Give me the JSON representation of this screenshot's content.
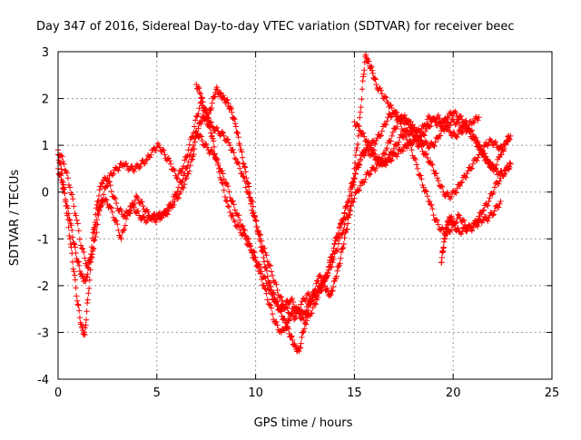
{
  "chart_data": {
    "type": "scatter",
    "title": "Day 347 of 2016, Sidereal Day-to-day VTEC variation (SDTVAR) for receiver beec",
    "xlabel": "GPS time / hours",
    "ylabel": "SDTVAR / TECUs",
    "xlim": [
      0,
      25
    ],
    "ylim": [
      -4,
      3
    ],
    "xticks": [
      0,
      5,
      10,
      15,
      20,
      25
    ],
    "yticks": [
      -4,
      -3,
      -2,
      -1,
      0,
      1,
      2,
      3
    ],
    "grid": true,
    "marker": "+",
    "color": "#ff0000",
    "series": [
      {
        "x": [
          0.0,
          0.2,
          0.4,
          0.6,
          0.8,
          1.0,
          1.2,
          1.35,
          1.5,
          1.7,
          1.9,
          2.1,
          2.3,
          2.6,
          2.9,
          3.2,
          3.5,
          3.8,
          4.1,
          4.4,
          4.7,
          5.0,
          5.3,
          5.6,
          5.9,
          6.2,
          6.5,
          6.8,
          7.0,
          7.2,
          7.4,
          7.6,
          7.8,
          8.0,
          8.3,
          8.6,
          8.9,
          9.2,
          9.5,
          9.8,
          10.1,
          10.4,
          10.7,
          11.0,
          11.3,
          11.6,
          11.9,
          12.2,
          12.5,
          12.8,
          13.1,
          13.4,
          13.7,
          14.0,
          14.3,
          14.6,
          14.9,
          15.2,
          15.5,
          15.8,
          16.1,
          16.4,
          16.7,
          17.0,
          17.3,
          17.6,
          17.9,
          18.2,
          18.5,
          18.8,
          19.1,
          19.4,
          19.7,
          20.0,
          20.3,
          20.6,
          20.9,
          21.2,
          21.5,
          21.8,
          22.1,
          22.4,
          22.7,
          22.9
        ],
        "y": [
          0.8,
          0.4,
          -0.3,
          -1.0,
          -1.7,
          -2.4,
          -2.9,
          -3.05,
          -2.3,
          -1.4,
          -0.7,
          -0.3,
          -0.15,
          -0.3,
          -0.6,
          -1.0,
          -0.5,
          -0.3,
          -0.5,
          -0.6,
          -0.55,
          -0.5,
          -0.5,
          -0.4,
          -0.2,
          0.0,
          0.3,
          0.7,
          1.2,
          1.5,
          1.6,
          1.45,
          1.2,
          0.7,
          0.2,
          -0.3,
          -0.6,
          -0.8,
          -1.0,
          -1.3,
          -1.6,
          -2.0,
          -2.4,
          -2.8,
          -3.0,
          -2.8,
          -2.5,
          -2.6,
          -2.8,
          -2.6,
          -2.3,
          -2.0,
          -1.6,
          -1.1,
          -0.7,
          -0.3,
          0.2,
          0.6,
          0.9,
          1.0,
          1.1,
          1.3,
          1.6,
          1.7,
          1.5,
          1.2,
          0.9,
          0.5,
          0.1,
          -0.2,
          -0.6,
          -0.8,
          -0.9,
          -0.7,
          -0.5,
          -0.7,
          -0.8,
          -0.6,
          -0.4,
          -0.2,
          0.1,
          0.3,
          0.5,
          0.6
        ]
      },
      {
        "x": [
          0.0,
          0.2,
          0.4,
          0.6,
          0.8,
          1.0,
          1.2,
          1.4,
          1.6,
          1.8,
          2.0,
          2.2,
          2.5,
          2.8,
          3.1,
          3.4,
          3.7,
          4.0,
          4.3,
          4.6,
          4.9,
          5.2,
          5.5,
          5.8,
          6.1,
          6.4,
          6.7,
          7.0,
          7.3,
          7.6,
          7.9,
          8.2,
          8.5,
          8.8,
          9.1,
          9.4,
          9.7,
          10.0,
          10.3,
          10.6,
          10.9,
          11.2,
          11.5,
          11.8,
          12.1,
          12.4,
          12.7,
          13.0,
          13.3,
          13.6,
          13.9,
          14.2,
          14.5,
          14.8,
          15.1,
          15.4,
          15.7,
          16.0,
          16.3,
          16.6,
          16.9,
          17.2,
          17.5,
          17.8,
          18.1,
          18.4,
          18.7,
          19.0,
          19.3,
          19.6,
          19.9,
          20.2,
          20.5,
          20.8,
          21.1,
          21.4,
          21.7,
          22.0,
          22.3,
          22.6,
          22.9
        ],
        "y": [
          0.5,
          0.2,
          -0.2,
          -0.6,
          -1.1,
          -1.5,
          -1.8,
          -1.9,
          -1.5,
          -0.8,
          -0.2,
          0.2,
          0.3,
          -0.1,
          -0.4,
          -0.5,
          -0.3,
          -0.1,
          -0.3,
          -0.5,
          -0.6,
          -0.55,
          -0.4,
          -0.2,
          0.1,
          0.4,
          0.8,
          1.3,
          1.1,
          0.9,
          0.8,
          0.5,
          0.2,
          -0.2,
          -0.5,
          -0.8,
          -1.1,
          -1.4,
          -1.7,
          -2.0,
          -2.3,
          -2.5,
          -2.4,
          -2.3,
          -2.5,
          -2.6,
          -2.4,
          -2.2,
          -2.0,
          -1.8,
          -1.5,
          -1.1,
          -0.7,
          -0.3,
          0.0,
          0.2,
          0.4,
          0.5,
          0.6,
          0.9,
          1.2,
          1.5,
          1.6,
          1.5,
          1.3,
          1.1,
          1.0,
          1.0,
          1.2,
          1.4,
          1.5,
          1.5,
          1.4,
          1.3,
          1.1,
          0.9,
          0.7,
          0.5,
          0.4,
          0.4,
          0.6
        ]
      },
      {
        "x": [
          0.0,
          0.3,
          0.6,
          0.9,
          1.2,
          1.5,
          1.8,
          2.1,
          2.4,
          2.7,
          3.0,
          3.3,
          3.6,
          3.9,
          4.2,
          4.5,
          4.8,
          5.1,
          5.4,
          5.7,
          6.0,
          6.3,
          6.6,
          6.9,
          7.2,
          7.5,
          7.8,
          8.1,
          8.4,
          8.7,
          9.0,
          9.3,
          9.6,
          9.9,
          10.2,
          10.5,
          10.8,
          11.1,
          11.4,
          11.7,
          12.0,
          12.3,
          12.6,
          12.9,
          13.2,
          13.5,
          13.8,
          14.1,
          14.4,
          14.7,
          15.0,
          15.3,
          15.6,
          15.9,
          16.2,
          16.5,
          16.8,
          17.1,
          17.4,
          17.7,
          18.0,
          18.3,
          18.6,
          18.9,
          19.2,
          19.5,
          19.8,
          20.1,
          20.4,
          20.7,
          21.0,
          21.3,
          21.6,
          21.9,
          22.2,
          22.5,
          22.8
        ],
        "y": [
          0.9,
          0.6,
          0.1,
          -0.5,
          -1.2,
          -1.6,
          -1.2,
          -0.4,
          0.1,
          0.4,
          0.5,
          0.6,
          0.5,
          0.5,
          0.6,
          0.7,
          0.9,
          1.0,
          0.8,
          0.6,
          0.3,
          0.5,
          0.9,
          1.4,
          1.9,
          1.7,
          1.4,
          1.3,
          1.2,
          1.0,
          0.7,
          0.4,
          0.0,
          -0.5,
          -0.9,
          -1.3,
          -1.7,
          -2.1,
          -2.4,
          -2.6,
          -2.7,
          -2.4,
          -2.2,
          -2.3,
          -2.1,
          -1.9,
          -1.5,
          -1.0,
          -0.6,
          -0.2,
          0.3,
          0.7,
          0.9,
          0.8,
          0.7,
          0.6,
          0.7,
          0.8,
          0.9,
          1.0,
          1.1,
          1.0,
          0.8,
          0.6,
          0.3,
          0.0,
          -0.1,
          0.0,
          0.2,
          0.4,
          0.6,
          0.8,
          1.0,
          1.1,
          1.0,
          0.9,
          1.1
        ]
      },
      {
        "x": [
          7.0,
          7.2,
          7.4,
          7.6,
          7.8,
          8.0,
          8.2,
          8.4,
          8.6,
          8.8,
          9.0,
          9.2,
          9.4,
          9.6,
          9.8,
          10.0,
          10.2,
          10.4,
          10.6,
          10.8,
          11.0,
          11.2,
          11.4,
          11.6,
          11.8,
          12.0,
          12.2,
          12.4,
          12.6,
          12.8,
          13.0,
          13.2,
          13.4,
          13.6,
          13.8,
          14.0,
          14.2,
          14.4,
          14.6,
          14.8,
          15.0,
          15.2,
          15.4,
          15.55,
          15.7,
          15.9,
          16.1,
          16.4,
          16.7,
          17.0,
          17.3,
          17.6,
          17.9,
          18.2,
          18.5,
          18.8,
          19.1,
          19.4,
          19.7,
          20.0,
          20.3,
          20.6,
          20.9,
          21.2,
          21.5,
          21.8,
          22.1,
          22.4,
          22.7,
          22.9
        ],
        "y": [
          2.3,
          2.1,
          1.8,
          1.6,
          1.9,
          2.2,
          2.1,
          2.0,
          1.9,
          1.7,
          1.4,
          1.0,
          0.6,
          0.2,
          -0.2,
          -0.6,
          -1.0,
          -1.4,
          -1.8,
          -2.1,
          -2.3,
          -2.5,
          -2.7,
          -2.9,
          -3.1,
          -3.3,
          -3.4,
          -3.0,
          -2.6,
          -2.3,
          -2.1,
          -1.8,
          -1.9,
          -2.1,
          -2.2,
          -1.9,
          -1.6,
          -1.2,
          -0.8,
          -0.4,
          0.5,
          1.2,
          2.2,
          2.9,
          2.8,
          2.6,
          2.3,
          2.1,
          1.9,
          1.7,
          1.6,
          1.5,
          1.4,
          1.3,
          1.4,
          1.6,
          1.5,
          1.4,
          1.6,
          1.7,
          1.6,
          1.5,
          1.3,
          1.1,
          0.8,
          0.6,
          0.5,
          0.8,
          1.1,
          1.2
        ]
      },
      {
        "x": [
          15.0,
          15.3,
          15.6,
          15.9,
          16.2,
          16.5,
          16.8,
          17.1,
          17.4,
          17.7,
          18.0,
          18.3,
          18.6,
          18.9,
          19.2,
          19.5,
          19.8,
          20.1,
          20.4,
          20.7,
          21.0,
          21.3
        ],
        "y": [
          1.5,
          1.3,
          1.1,
          0.9,
          0.7,
          0.6,
          0.8,
          1.0,
          1.2,
          1.3,
          1.2,
          1.1,
          1.3,
          1.5,
          1.6,
          1.5,
          1.3,
          1.2,
          1.3,
          1.4,
          1.5,
          1.6
        ]
      },
      {
        "x": [
          19.4,
          19.5,
          19.6,
          19.7,
          19.8,
          19.9,
          20.0,
          20.3,
          20.6,
          20.9,
          21.2,
          21.5,
          21.8,
          22.1,
          22.4
        ],
        "y": [
          -1.5,
          -1.2,
          -0.9,
          -0.7,
          -0.6,
          -0.55,
          -0.7,
          -0.85,
          -0.8,
          -0.75,
          -0.7,
          -0.6,
          -0.55,
          -0.4,
          -0.2
        ]
      }
    ]
  }
}
